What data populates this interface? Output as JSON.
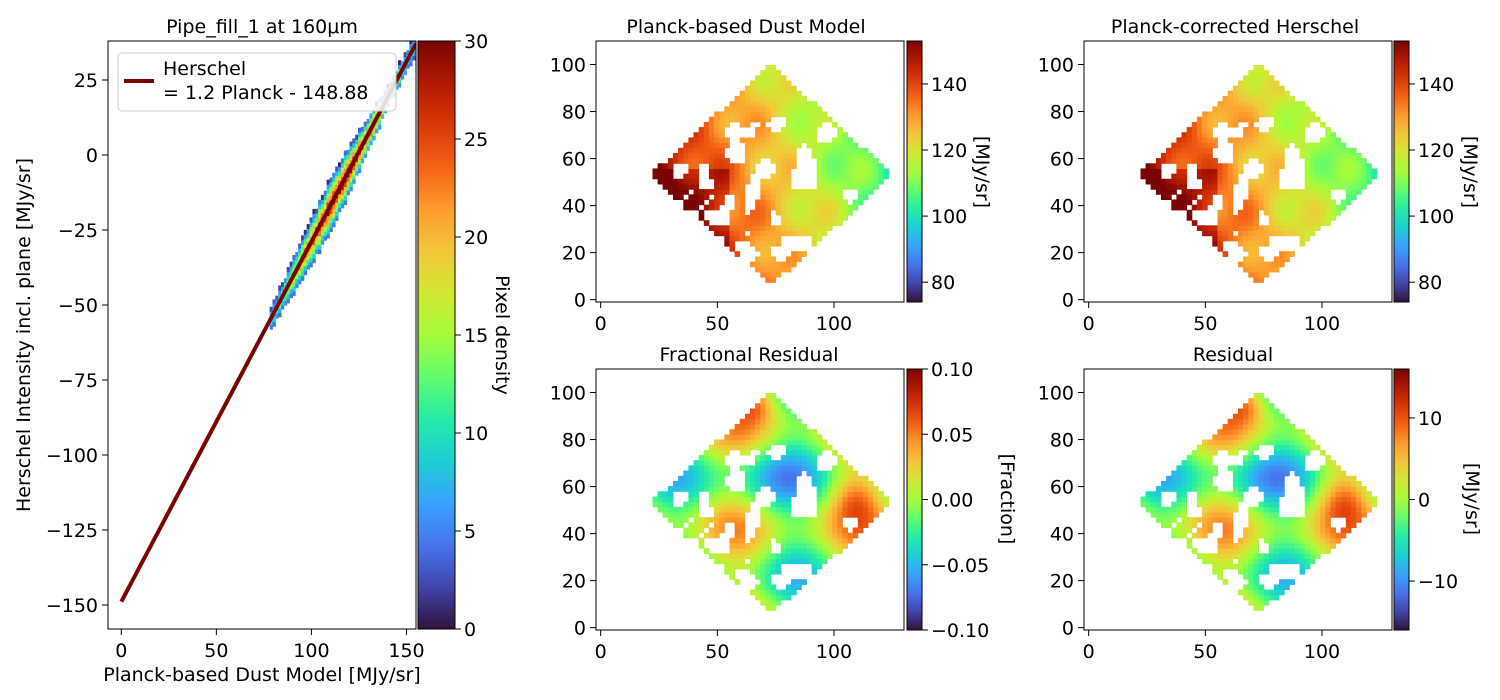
{
  "colors": {
    "turbo": [
      "#30123b",
      "#4145ab",
      "#4675ed",
      "#39a2fc",
      "#1bcfd4",
      "#24eca6",
      "#61fc6c",
      "#a4fc3b",
      "#d1e834",
      "#f3c63a",
      "#fe9b2d",
      "#f36315",
      "#d93806",
      "#b11901",
      "#7a0403"
    ],
    "fit_line": "#7a0403"
  },
  "chart_data": [
    {
      "id": "scatter",
      "type": "heatmap",
      "title": "Pipe_fill_1 at 160μm",
      "xlabel": "Planck-based Dust Model [MJy/sr]",
      "ylabel": "Herschel Intensity incl. plane [MJy/sr]",
      "xlim": [
        -7,
        155
      ],
      "ylim": [
        -158,
        38
      ],
      "xticks": [
        0,
        50,
        100,
        150
      ],
      "yticks": [
        25,
        0,
        -25,
        -50,
        -75,
        -100,
        -125,
        -150
      ],
      "fit": {
        "slope": 1.2,
        "intercept": -148.88,
        "x_range": [
          0,
          155
        ]
      },
      "density_band": {
        "x_range": [
          78,
          153
        ],
        "max_density": 30
      },
      "legend": {
        "label_line1": "Herschel",
        "label_line2": "= 1.2 Planck - 148.88",
        "position": "top-left"
      },
      "colorbar": {
        "label": "Pixel density",
        "vmin": 0,
        "vmax": 30,
        "ticks": [
          0,
          5,
          10,
          15,
          20,
          25,
          30
        ]
      }
    },
    {
      "id": "dust_model",
      "type": "heatmap",
      "title": "Planck-based Dust Model",
      "xlim": [
        -2,
        130
      ],
      "ylim": [
        -1,
        110
      ],
      "xticks": [
        0,
        50,
        100
      ],
      "yticks": [
        0,
        20,
        40,
        60,
        80,
        100
      ],
      "colorbar": {
        "label": "[MJy/sr]",
        "vmin": 74,
        "vmax": 153,
        "ticks": [
          80,
          100,
          120,
          140
        ]
      }
    },
    {
      "id": "corrected",
      "type": "heatmap",
      "title": "Planck-corrected Herschel",
      "xlim": [
        -2,
        130
      ],
      "ylim": [
        -1,
        110
      ],
      "xticks": [
        0,
        50,
        100
      ],
      "yticks": [
        0,
        20,
        40,
        60,
        80,
        100
      ],
      "colorbar": {
        "label": "[MJy/sr]",
        "vmin": 74,
        "vmax": 153,
        "ticks": [
          80,
          100,
          120,
          140
        ]
      }
    },
    {
      "id": "frac_residual",
      "type": "heatmap",
      "title": "Fractional Residual",
      "xlim": [
        -2,
        130
      ],
      "ylim": [
        -1,
        110
      ],
      "xticks": [
        0,
        50,
        100
      ],
      "yticks": [
        0,
        20,
        40,
        60,
        80,
        100
      ],
      "colorbar": {
        "label": "[Fraction]",
        "vmin": -0.1,
        "vmax": 0.1,
        "ticks": [
          0.1,
          0.05,
          0.0,
          -0.05,
          -0.1
        ],
        "tick_labels": [
          "0.10",
          "0.05",
          "0.00",
          "−0.05",
          "−0.10"
        ]
      }
    },
    {
      "id": "residual",
      "type": "heatmap",
      "title": "Residual",
      "xlim": [
        -2,
        130
      ],
      "ylim": [
        -1,
        110
      ],
      "xticks": [
        0,
        50,
        100
      ],
      "yticks": [
        0,
        20,
        40,
        60,
        80,
        100
      ],
      "colorbar": {
        "label": "[MJy/sr]",
        "vmin": -16,
        "vmax": 16,
        "ticks": [
          10,
          0,
          -10
        ],
        "tick_labels": [
          "10",
          "0",
          "−10"
        ]
      }
    }
  ]
}
